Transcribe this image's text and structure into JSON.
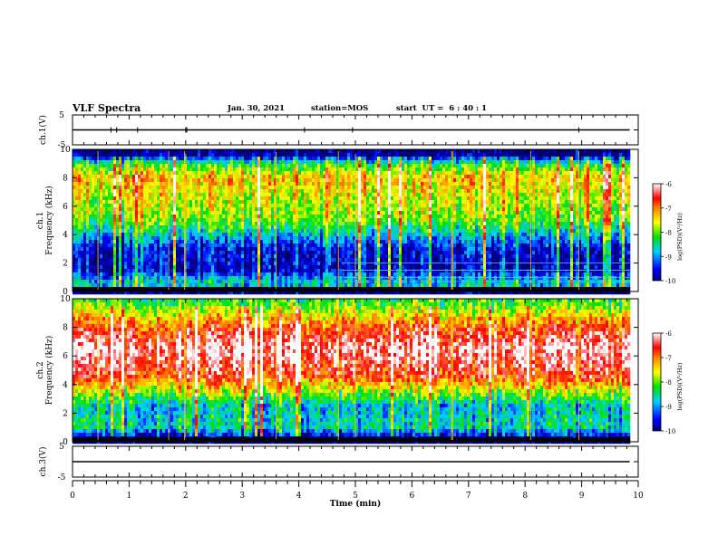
{
  "header": {
    "title": "VLF Spectra",
    "date": "Jan. 30, 2021",
    "station": "station=MOS",
    "start_time": "start  UT =  6 : 40 : 1"
  },
  "colorbar": {
    "label": "log(PSD)(V²/Hz)",
    "ticks": [
      "-6",
      "-7",
      "-8",
      "-9",
      "-10"
    ]
  },
  "chart_data": [
    {
      "type": "line",
      "panel": "ch.1 waveform",
      "ylabel": "ch.1(V)",
      "ylim": [
        -5,
        5
      ],
      "yticks": [
        "5",
        "-5"
      ],
      "series": [
        {
          "values": [
            0
          ]
        }
      ],
      "xlim": [
        0,
        10
      ]
    },
    {
      "type": "heatmap",
      "panel": "ch.1 spectrogram",
      "ylabel": "ch.1 Frequency (kHz)",
      "xlim": [
        0,
        10
      ],
      "ylim": [
        0,
        10
      ],
      "yticks": [
        "0",
        "2",
        "4",
        "6",
        "8",
        "10"
      ],
      "color_range": [
        -10,
        -6
      ],
      "data_end_min": 9.85,
      "band_profile": [
        {
          "freq_khz": 0.2,
          "log_psd": -10
        },
        {
          "freq_khz": 0.5,
          "log_psd": -8.5
        },
        {
          "freq_khz": 1.5,
          "log_psd": -9.7
        },
        {
          "freq_khz": 3.0,
          "log_psd": -9.6
        },
        {
          "freq_khz": 4.0,
          "log_psd": -8.8
        },
        {
          "freq_khz": 5.0,
          "log_psd": -8.0
        },
        {
          "freq_khz": 6.5,
          "log_psd": -7.7
        },
        {
          "freq_khz": 8.0,
          "log_psd": -7.3
        },
        {
          "freq_khz": 9.0,
          "log_psd": -8.3
        },
        {
          "freq_khz": 9.6,
          "log_psd": -10
        }
      ]
    },
    {
      "type": "heatmap",
      "panel": "ch.2 spectrogram",
      "ylabel": "ch.2 Frequency (kHz)",
      "xlim": [
        0,
        10
      ],
      "ylim": [
        0,
        10
      ],
      "yticks": [
        "0",
        "2",
        "4",
        "6",
        "8",
        "10"
      ],
      "color_range": [
        -10,
        -6
      ],
      "data_end_min": 9.85,
      "band_profile": [
        {
          "freq_khz": 0.2,
          "log_psd": -10
        },
        {
          "freq_khz": 1.0,
          "log_psd": -8.6
        },
        {
          "freq_khz": 2.5,
          "log_psd": -8.8
        },
        {
          "freq_khz": 3.7,
          "log_psd": -7.6
        },
        {
          "freq_khz": 4.6,
          "log_psd": -6.7
        },
        {
          "freq_khz": 6.5,
          "log_psd": -6.1
        },
        {
          "freq_khz": 8.0,
          "log_psd": -6.8
        },
        {
          "freq_khz": 9.0,
          "log_psd": -7.6
        },
        {
          "freq_khz": 9.8,
          "log_psd": -8.2
        }
      ]
    },
    {
      "type": "line",
      "panel": "ch.3 waveform",
      "ylabel": "ch.3(V)",
      "ylim": [
        -5,
        5
      ],
      "yticks": [
        "5",
        "-5"
      ],
      "series": [
        {
          "values": [
            0
          ]
        }
      ],
      "xlim": [
        0,
        10
      ]
    }
  ],
  "x_axis": {
    "label": "Time (min)",
    "ticks": [
      "0",
      "1",
      "2",
      "3",
      "4",
      "5",
      "6",
      "7",
      "8",
      "9",
      "10"
    ]
  }
}
